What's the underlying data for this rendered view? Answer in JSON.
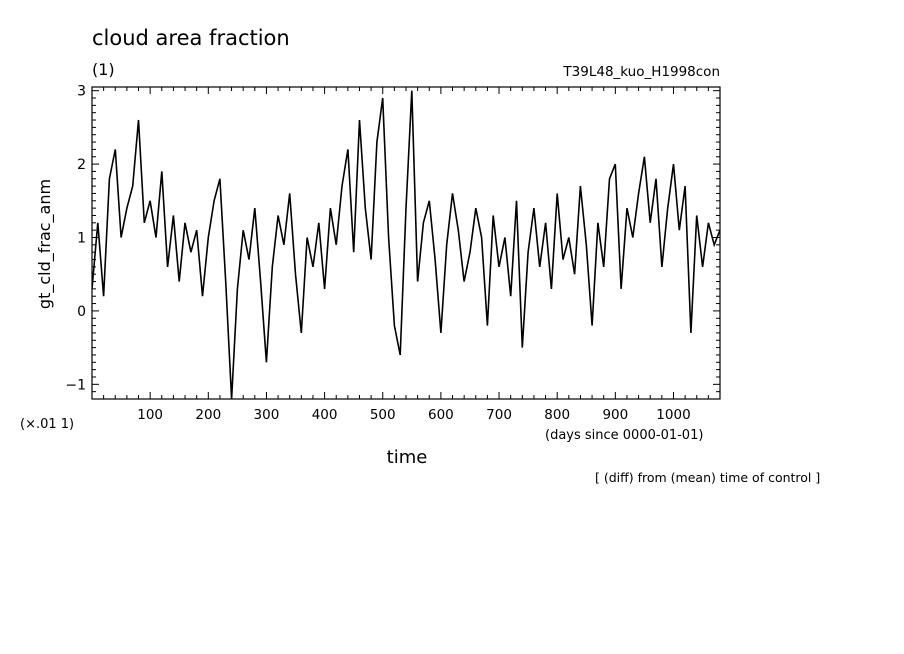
{
  "header": {
    "title": "cloud area fraction",
    "units": "(1)",
    "run_id": "T39L48_kuo_H1998con",
    "footnote": "[ (diff) from (mean) time of control ]",
    "scale_note": "(×.01 1)"
  },
  "chart_data": {
    "type": "line",
    "xlabel": "time",
    "xunit_label": "(days since 0000-01-01)",
    "ylabel": "gt_cld_frac_anm",
    "xlim": [
      0,
      1080
    ],
    "ylim": [
      -1.2,
      3.05
    ],
    "x_ticks": [
      100,
      200,
      300,
      400,
      500,
      600,
      700,
      800,
      900,
      1000
    ],
    "y_ticks": [
      -1,
      0,
      1,
      2,
      3
    ],
    "y_tick_labels": [
      "−1",
      "0",
      "1",
      "2",
      "3"
    ],
    "grid": false,
    "series": [
      {
        "x": [
          0,
          10,
          20,
          30,
          40,
          50,
          60,
          70,
          80,
          90,
          100,
          110,
          120,
          130,
          140,
          150,
          160,
          170,
          180,
          190,
          200,
          210,
          220,
          230,
          240,
          250,
          260,
          270,
          280,
          290,
          300,
          310,
          320,
          330,
          340,
          350,
          360,
          370,
          380,
          390,
          400,
          410,
          420,
          430,
          440,
          450,
          460,
          470,
          480,
          490,
          500,
          510,
          520,
          530,
          540,
          550,
          560,
          570,
          580,
          590,
          600,
          610,
          620,
          630,
          640,
          650,
          660,
          670,
          680,
          690,
          700,
          710,
          720,
          730,
          740,
          750,
          760,
          770,
          780,
          790,
          800,
          810,
          820,
          830,
          840,
          850,
          860,
          870,
          880,
          890,
          900,
          910,
          920,
          930,
          940,
          950,
          960,
          970,
          980,
          990,
          1000,
          1010,
          1020,
          1030,
          1040,
          1050,
          1060,
          1070,
          1080
        ],
        "values": [
          0.3,
          1.2,
          0.2,
          1.8,
          2.2,
          1.0,
          1.4,
          1.7,
          2.6,
          1.2,
          1.5,
          1.0,
          1.9,
          0.6,
          1.3,
          0.4,
          1.2,
          0.8,
          1.1,
          0.2,
          1.0,
          1.5,
          1.8,
          0.4,
          -1.2,
          0.3,
          1.1,
          0.7,
          1.4,
          0.4,
          -0.7,
          0.6,
          1.3,
          0.9,
          1.6,
          0.5,
          -0.3,
          1.0,
          0.6,
          1.2,
          0.3,
          1.4,
          0.9,
          1.7,
          2.2,
          0.8,
          2.6,
          1.4,
          0.7,
          2.3,
          2.9,
          1.0,
          -0.2,
          -0.6,
          1.4,
          3.0,
          0.4,
          1.2,
          1.5,
          0.7,
          -0.3,
          0.9,
          1.6,
          1.1,
          0.4,
          0.8,
          1.4,
          1.0,
          -0.2,
          1.3,
          0.6,
          1.0,
          0.2,
          1.5,
          -0.5,
          0.8,
          1.4,
          0.6,
          1.2,
          0.3,
          1.6,
          0.7,
          1.0,
          0.5,
          1.7,
          0.9,
          -0.2,
          1.2,
          0.6,
          1.8,
          2.0,
          0.3,
          1.4,
          1.0,
          1.6,
          2.1,
          1.2,
          1.8,
          0.6,
          1.4,
          2.0,
          1.1,
          1.7,
          -0.3,
          1.3,
          0.6,
          1.2,
          0.9,
          1.1
        ]
      }
    ]
  }
}
